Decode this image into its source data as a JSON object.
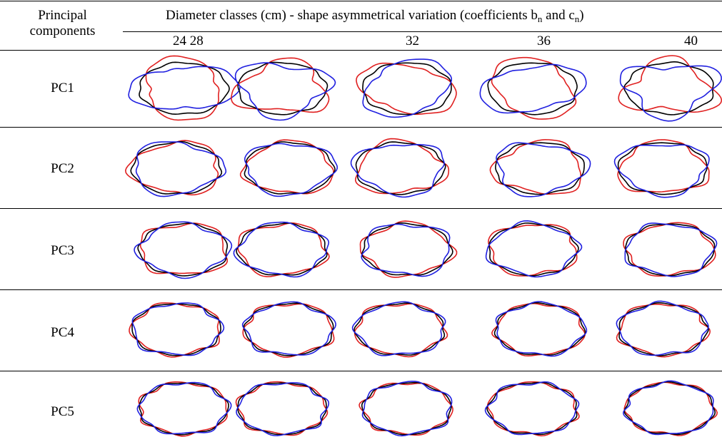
{
  "header": {
    "row_header_line1": "Principal",
    "row_header_line2": "components",
    "title_main": "Diameter classes (cm)  - shape asymmetrical variation (coefficients b",
    "title_sub1": "n",
    "title_mid": " and c",
    "title_sub2": "n",
    "title_end": ")"
  },
  "diameter_labels": [
    "24 28",
    "32",
    "36",
    "40"
  ],
  "rows": [
    {
      "label": "PC1"
    },
    {
      "label": "PC2"
    },
    {
      "label": "PC3"
    },
    {
      "label": "PC4"
    },
    {
      "label": "PC5"
    }
  ],
  "line_colors": {
    "mean": "#000000",
    "minus": "#e02020",
    "plus": "#2020e0"
  },
  "shape_params": [
    [
      {
        "amp": 0.25,
        "k": 2,
        "ph": 0.3
      },
      {
        "amp": 0.22,
        "k": 3,
        "ph": 1.1
      },
      {
        "amp": 0.2,
        "k": 2,
        "ph": 2.0
      },
      {
        "amp": 0.24,
        "k": 2,
        "ph": 0.8
      },
      {
        "amp": 0.26,
        "k": 3,
        "ph": 1.5
      }
    ],
    [
      {
        "amp": 0.12,
        "k": 3,
        "ph": 0.2
      },
      {
        "amp": 0.1,
        "k": 3,
        "ph": 1.0
      },
      {
        "amp": 0.13,
        "k": 3,
        "ph": 2.2
      },
      {
        "amp": 0.14,
        "k": 3,
        "ph": 0.6
      },
      {
        "amp": 0.12,
        "k": 3,
        "ph": 1.8
      }
    ],
    [
      {
        "amp": 0.1,
        "k": 4,
        "ph": 0.5
      },
      {
        "amp": 0.09,
        "k": 4,
        "ph": 1.2
      },
      {
        "amp": 0.1,
        "k": 4,
        "ph": 2.4
      },
      {
        "amp": 0.09,
        "k": 4,
        "ph": 0.9
      },
      {
        "amp": 0.08,
        "k": 4,
        "ph": 1.6
      }
    ],
    [
      {
        "amp": 0.07,
        "k": 5,
        "ph": 0.4
      },
      {
        "amp": 0.07,
        "k": 5,
        "ph": 1.3
      },
      {
        "amp": 0.07,
        "k": 5,
        "ph": 2.1
      },
      {
        "amp": 0.06,
        "k": 5,
        "ph": 0.7
      },
      {
        "amp": 0.07,
        "k": 5,
        "ph": 1.9
      }
    ],
    [
      {
        "amp": 0.06,
        "k": 6,
        "ph": 0.6
      },
      {
        "amp": 0.06,
        "k": 6,
        "ph": 1.4
      },
      {
        "amp": 0.06,
        "k": 6,
        "ph": 2.3
      },
      {
        "amp": 0.06,
        "k": 6,
        "ph": 1.0
      },
      {
        "amp": 0.05,
        "k": 6,
        "ph": 2.0
      }
    ]
  ]
}
